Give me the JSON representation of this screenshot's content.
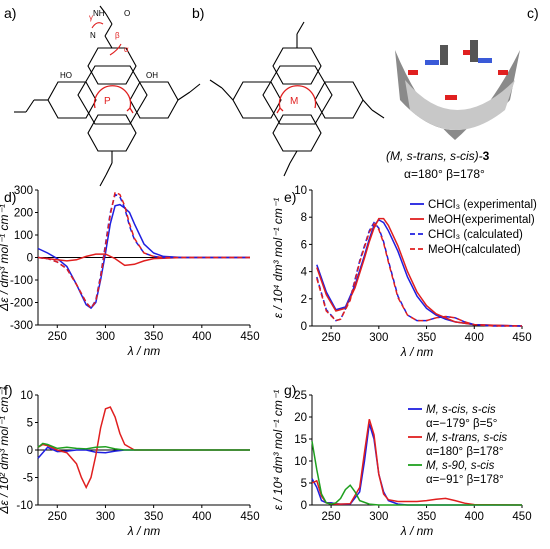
{
  "figure": {
    "panel_labels": [
      "a)",
      "b)",
      "c)",
      "d)",
      "e)",
      "f)",
      "g)"
    ],
    "structure_a": {
      "rotation_label": "P",
      "angle_labels": [
        "γ",
        "β",
        "α"
      ],
      "substituent_atoms": [
        "HO",
        "OH",
        "N",
        "NH",
        "O"
      ]
    },
    "structure_b": {
      "rotation_label": "M"
    },
    "model_c": {
      "caption_line1": "(M, s-trans, s-cis)-",
      "caption_bold": "3",
      "caption_line2": "α=180° β=178°"
    }
  },
  "colors": {
    "blue": "#1f1fe0",
    "red": "#e01f1f",
    "green": "#1fa01f",
    "axis": "#000000"
  },
  "chart_data": [
    {
      "id": "d",
      "type": "line",
      "xlabel": "λ / nm",
      "ylabel": "Δε / dm³ mol⁻¹ cm⁻¹",
      "xlim": [
        230,
        450
      ],
      "ylim": [
        -300,
        300
      ],
      "xticks": [
        250,
        300,
        350,
        400,
        450
      ],
      "yticks": [
        -300,
        -200,
        -100,
        0,
        100,
        200,
        300
      ],
      "legend": "none",
      "series": [
        {
          "color": "blue",
          "dash": false,
          "x": [
            230,
            240,
            250,
            260,
            270,
            280,
            285,
            290,
            295,
            300,
            305,
            310,
            315,
            320,
            325,
            330,
            340,
            350,
            360,
            380,
            400,
            450
          ],
          "y": [
            40,
            20,
            -5,
            -40,
            -120,
            -210,
            -225,
            -200,
            -100,
            20,
            150,
            230,
            235,
            220,
            200,
            150,
            60,
            20,
            5,
            0,
            0,
            0
          ]
        },
        {
          "color": "red",
          "dash": false,
          "x": [
            230,
            240,
            250,
            260,
            270,
            280,
            290,
            300,
            310,
            320,
            330,
            340,
            350,
            380,
            450
          ],
          "y": [
            0,
            -5,
            -10,
            -15,
            -10,
            5,
            15,
            15,
            -5,
            -35,
            -30,
            -15,
            -5,
            0,
            0
          ]
        },
        {
          "color": "blue",
          "dash": true,
          "x": [
            230,
            240,
            250,
            260,
            270,
            280,
            285,
            290,
            295,
            300,
            305,
            310,
            315,
            320,
            325,
            330,
            340,
            350,
            360,
            400,
            450
          ],
          "y": [
            0,
            -5,
            -20,
            -50,
            -120,
            -200,
            -225,
            -190,
            -80,
            60,
            200,
            280,
            270,
            220,
            140,
            80,
            20,
            5,
            0,
            0,
            0
          ]
        },
        {
          "color": "red",
          "dash": true,
          "x": [
            230,
            240,
            250,
            260,
            270,
            280,
            285,
            290,
            295,
            300,
            305,
            310,
            315,
            320,
            325,
            330,
            340,
            350,
            360,
            400,
            450
          ],
          "y": [
            0,
            -5,
            -20,
            -50,
            -120,
            -200,
            -225,
            -195,
            -90,
            50,
            190,
            290,
            280,
            230,
            150,
            85,
            20,
            5,
            0,
            0,
            0
          ]
        }
      ]
    },
    {
      "id": "e",
      "type": "line",
      "xlabel": "λ / nm",
      "ylabel": "ε / 10⁴ dm³ mol⁻¹ cm⁻¹",
      "xlim": [
        230,
        450
      ],
      "ylim": [
        0,
        10
      ],
      "xticks": [
        250,
        300,
        350,
        400,
        450
      ],
      "yticks": [
        0,
        2,
        4,
        6,
        8,
        10
      ],
      "legend": "top-right",
      "series": [
        {
          "name": "CHCl₃ (experimental)",
          "color": "blue",
          "dash": false,
          "x": [
            235,
            245,
            255,
            265,
            275,
            285,
            290,
            295,
            300,
            305,
            310,
            320,
            330,
            340,
            350,
            360,
            370,
            380,
            400,
            420,
            450
          ],
          "y": [
            4.5,
            2.5,
            1.2,
            1.4,
            3.0,
            5.2,
            6.4,
            7.4,
            7.8,
            7.6,
            7.0,
            5.5,
            3.6,
            2.2,
            1.3,
            0.8,
            0.5,
            0.3,
            0.1,
            0.05,
            0
          ]
        },
        {
          "name": "MeOH(experimental)",
          "color": "red",
          "dash": false,
          "x": [
            235,
            245,
            255,
            265,
            275,
            285,
            290,
            295,
            300,
            305,
            310,
            320,
            330,
            340,
            350,
            360,
            370,
            380,
            400,
            420,
            450
          ],
          "y": [
            4.3,
            2.3,
            1.1,
            1.3,
            2.8,
            5.0,
            6.2,
            7.2,
            7.9,
            7.9,
            7.4,
            5.9,
            4.0,
            2.5,
            1.5,
            0.9,
            0.6,
            0.3,
            0.1,
            0.05,
            0
          ]
        },
        {
          "name": "CHCl₃ (calculated)",
          "color": "blue",
          "dash": true,
          "x": [
            235,
            245,
            255,
            260,
            270,
            280,
            290,
            295,
            300,
            305,
            310,
            320,
            330,
            340,
            350,
            360,
            370,
            380,
            390,
            400,
            420,
            450
          ],
          "y": [
            3.6,
            1.2,
            0.4,
            0.5,
            2.0,
            4.8,
            7.0,
            7.6,
            7.2,
            6.2,
            4.8,
            2.2,
            0.8,
            0.4,
            0.4,
            0.6,
            0.7,
            0.6,
            0.3,
            0.1,
            0,
            0
          ]
        },
        {
          "name": "MeOH(calculated)",
          "color": "red",
          "dash": true,
          "x": [
            235,
            245,
            255,
            260,
            270,
            280,
            290,
            295,
            300,
            305,
            310,
            320,
            330,
            340,
            350,
            360,
            370,
            380,
            390,
            400,
            420,
            450
          ],
          "y": [
            3.5,
            1.1,
            0.4,
            0.5,
            1.9,
            4.7,
            6.9,
            7.5,
            7.1,
            6.1,
            4.7,
            2.1,
            0.8,
            0.4,
            0.4,
            0.6,
            0.7,
            0.6,
            0.3,
            0.1,
            0,
            0
          ]
        }
      ]
    },
    {
      "id": "f",
      "type": "line",
      "xlabel": "λ / nm",
      "ylabel": "Δε / 10² dm³ mol⁻¹ cm⁻¹",
      "xlim": [
        230,
        450
      ],
      "ylim": [
        -10,
        10
      ],
      "xticks": [
        250,
        300,
        350,
        400,
        450
      ],
      "yticks": [
        -10,
        -5,
        0,
        5,
        10
      ],
      "legend": "none",
      "series": [
        {
          "color": "blue",
          "dash": false,
          "x": [
            230,
            235,
            240,
            250,
            260,
            270,
            280,
            290,
            300,
            310,
            320,
            330,
            350,
            450
          ],
          "y": [
            -1.5,
            -0.5,
            0.5,
            -0.3,
            -0.2,
            0,
            0,
            -0.4,
            -0.5,
            -0.2,
            0,
            0,
            0,
            0
          ]
        },
        {
          "color": "red",
          "dash": false,
          "x": [
            230,
            235,
            240,
            250,
            260,
            270,
            275,
            280,
            285,
            290,
            295,
            300,
            305,
            310,
            315,
            320,
            330,
            340,
            450
          ],
          "y": [
            0.5,
            1,
            0.8,
            0,
            -0.5,
            -2.5,
            -5,
            -6.8,
            -5,
            -1,
            4,
            7.5,
            7.8,
            6,
            3,
            1,
            0,
            0,
            0
          ]
        },
        {
          "color": "green",
          "dash": false,
          "x": [
            230,
            235,
            240,
            250,
            260,
            270,
            280,
            290,
            300,
            310,
            320,
            330,
            450
          ],
          "y": [
            0.5,
            1.2,
            1.0,
            0.3,
            0.5,
            0.3,
            0.2,
            0.5,
            0.6,
            0.2,
            0,
            0,
            0
          ]
        }
      ]
    },
    {
      "id": "g",
      "type": "line",
      "xlabel": "λ / nm",
      "ylabel": "ε / 10⁴ dm³ mol⁻¹ cm⁻¹",
      "xlim": [
        230,
        450
      ],
      "ylim": [
        0,
        25
      ],
      "xticks": [
        250,
        300,
        350,
        400,
        450
      ],
      "yticks": [
        0,
        5,
        10,
        15,
        20,
        25
      ],
      "legend": "top-right",
      "series": [
        {
          "name": "M, s-cis, s-cis",
          "angles": "α=−179° β=5°",
          "color": "blue",
          "dash": false,
          "x": [
            230,
            235,
            240,
            245,
            250,
            255,
            260,
            270,
            280,
            285,
            290,
            295,
            300,
            305,
            310,
            320,
            330,
            350,
            380,
            450
          ],
          "y": [
            6,
            4,
            1,
            0.5,
            0.5,
            0.3,
            0.2,
            0.2,
            3,
            10,
            18.5,
            15,
            7,
            3,
            1,
            0.2,
            0,
            0,
            0,
            0
          ]
        },
        {
          "name": "M, s-trans, s-cis",
          "angles": "α=180° β=178°",
          "color": "red",
          "dash": false,
          "x": [
            230,
            235,
            240,
            245,
            250,
            255,
            260,
            270,
            280,
            285,
            290,
            295,
            300,
            305,
            310,
            320,
            340,
            350,
            360,
            370,
            380,
            390,
            400,
            450
          ],
          "y": [
            5,
            5.5,
            2,
            0.5,
            0.3,
            0.2,
            0.2,
            0.3,
            4,
            12,
            19.5,
            16,
            7,
            2.5,
            1.2,
            0.8,
            0.8,
            1.0,
            1.3,
            1.5,
            1.0,
            0.4,
            0.1,
            0
          ]
        },
        {
          "name": "M, s-90, s-cis",
          "angles": "α=−91° β=178°",
          "color": "green",
          "dash": false,
          "x": [
            230,
            235,
            240,
            245,
            250,
            255,
            260,
            265,
            270,
            275,
            280,
            290,
            300,
            320,
            450
          ],
          "y": [
            14.5,
            8,
            2.5,
            0.5,
            0.2,
            0.5,
            1.5,
            3.5,
            4.5,
            3,
            1,
            0.2,
            0,
            0,
            0
          ]
        }
      ]
    }
  ]
}
